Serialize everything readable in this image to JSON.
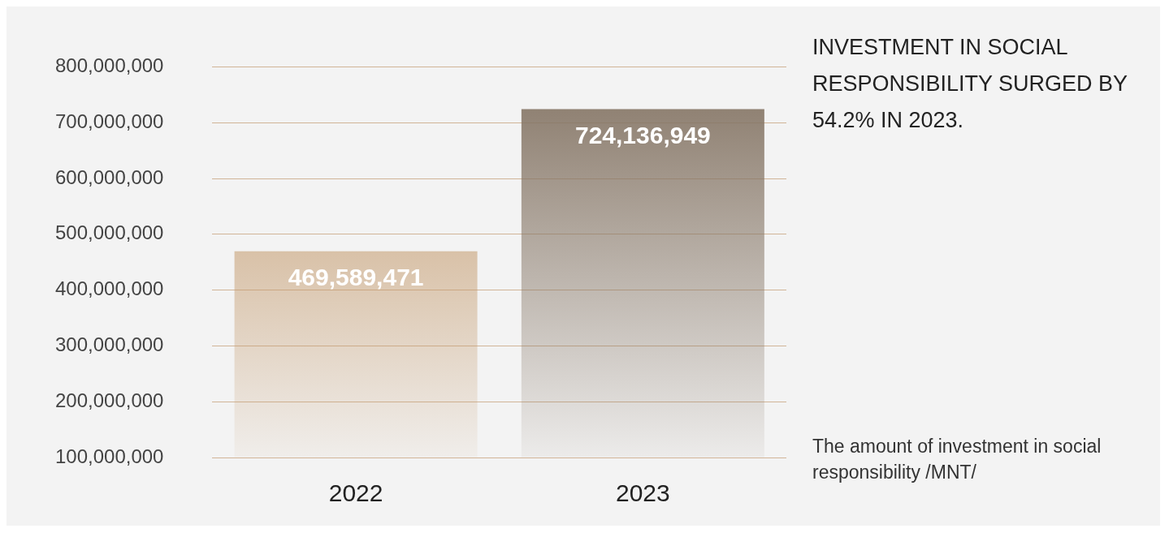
{
  "chart_data": {
    "type": "bar",
    "title": "INVESTMENT IN SOCIAL RESPONSIBILITY SURGED BY 54.2% IN 2023.",
    "categories": [
      "2022",
      "2023"
    ],
    "values": [
      469589471,
      724136949
    ],
    "value_labels": [
      "469,589,471",
      "724,136,949"
    ],
    "colors": [
      "#c49a6c",
      "#857565"
    ],
    "ylim": [
      100000000,
      800000000
    ],
    "yticks": [
      {
        "value": 100000000,
        "label": "100,000,000"
      },
      {
        "value": 200000000,
        "label": "200,000,000"
      },
      {
        "value": 300000000,
        "label": "300,000,000"
      },
      {
        "value": 400000000,
        "label": "400,000,000"
      },
      {
        "value": 500000000,
        "label": "500,000,000"
      },
      {
        "value": 600000000,
        "label": "600,000,000"
      },
      {
        "value": 700000000,
        "label": "700,000,000"
      },
      {
        "value": 800000000,
        "label": "800,000,000"
      }
    ],
    "grid": "y",
    "annotations": [
      "The amount of investment in social responsibility /MNT/"
    ]
  }
}
